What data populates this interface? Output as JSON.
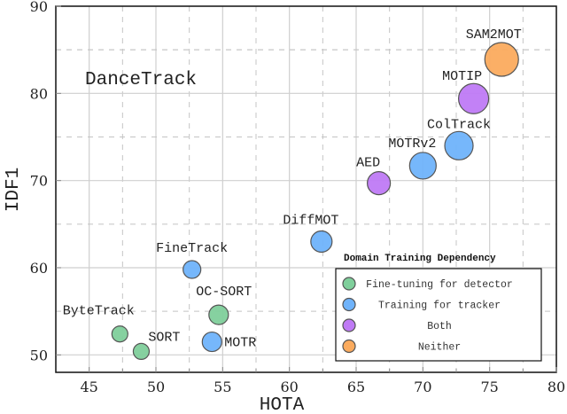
{
  "chart_data": {
    "type": "scatter",
    "title": "",
    "annotation": "DanceTrack",
    "xlabel": "HOTA",
    "ylabel": "IDF1",
    "xlim": [
      42.5,
      80
    ],
    "ylim": [
      48,
      90
    ],
    "xticks": [
      45,
      50,
      55,
      60,
      65,
      70,
      75,
      80
    ],
    "yticks": [
      50,
      60,
      70,
      80,
      90
    ],
    "grid": true,
    "legend": {
      "title": "Domain Training Dependency",
      "position": "lower right",
      "entries": [
        {
          "label": "Fine-tuning for detector",
          "color": "#7fcf9b"
        },
        {
          "label": "Training for tracker",
          "color": "#6fb3fb"
        },
        {
          "label": "Both",
          "color": "#bf7af5"
        },
        {
          "label": "Neither",
          "color": "#fbab5e"
        }
      ]
    },
    "points": [
      {
        "name": "SORT",
        "x": 48.9,
        "y": 50.4,
        "category": "Fine-tuning for detector",
        "size": 9
      },
      {
        "name": "ByteTrack",
        "x": 47.3,
        "y": 52.4,
        "category": "Fine-tuning for detector",
        "size": 9
      },
      {
        "name": "OC-SORT",
        "x": 54.7,
        "y": 54.6,
        "category": "Fine-tuning for detector",
        "size": 11
      },
      {
        "name": "FineTrack",
        "x": 52.7,
        "y": 59.8,
        "category": "Training for tracker",
        "size": 10
      },
      {
        "name": "MOTR",
        "x": 54.2,
        "y": 51.5,
        "category": "Training for tracker",
        "size": 11
      },
      {
        "name": "DiffMOT",
        "x": 62.4,
        "y": 63.0,
        "category": "Training for tracker",
        "size": 12
      },
      {
        "name": "AED",
        "x": 66.7,
        "y": 69.7,
        "category": "Both",
        "size": 13
      },
      {
        "name": "MOTRv2",
        "x": 70.0,
        "y": 71.7,
        "category": "Training for tracker",
        "size": 15
      },
      {
        "name": "ColTrack",
        "x": 72.7,
        "y": 74.0,
        "category": "Training for tracker",
        "size": 16
      },
      {
        "name": "MOTIP",
        "x": 73.8,
        "y": 79.4,
        "category": "Both",
        "size": 17
      },
      {
        "name": "SAM2MOT",
        "x": 75.9,
        "y": 83.9,
        "category": "Neither",
        "size": 19
      }
    ]
  }
}
